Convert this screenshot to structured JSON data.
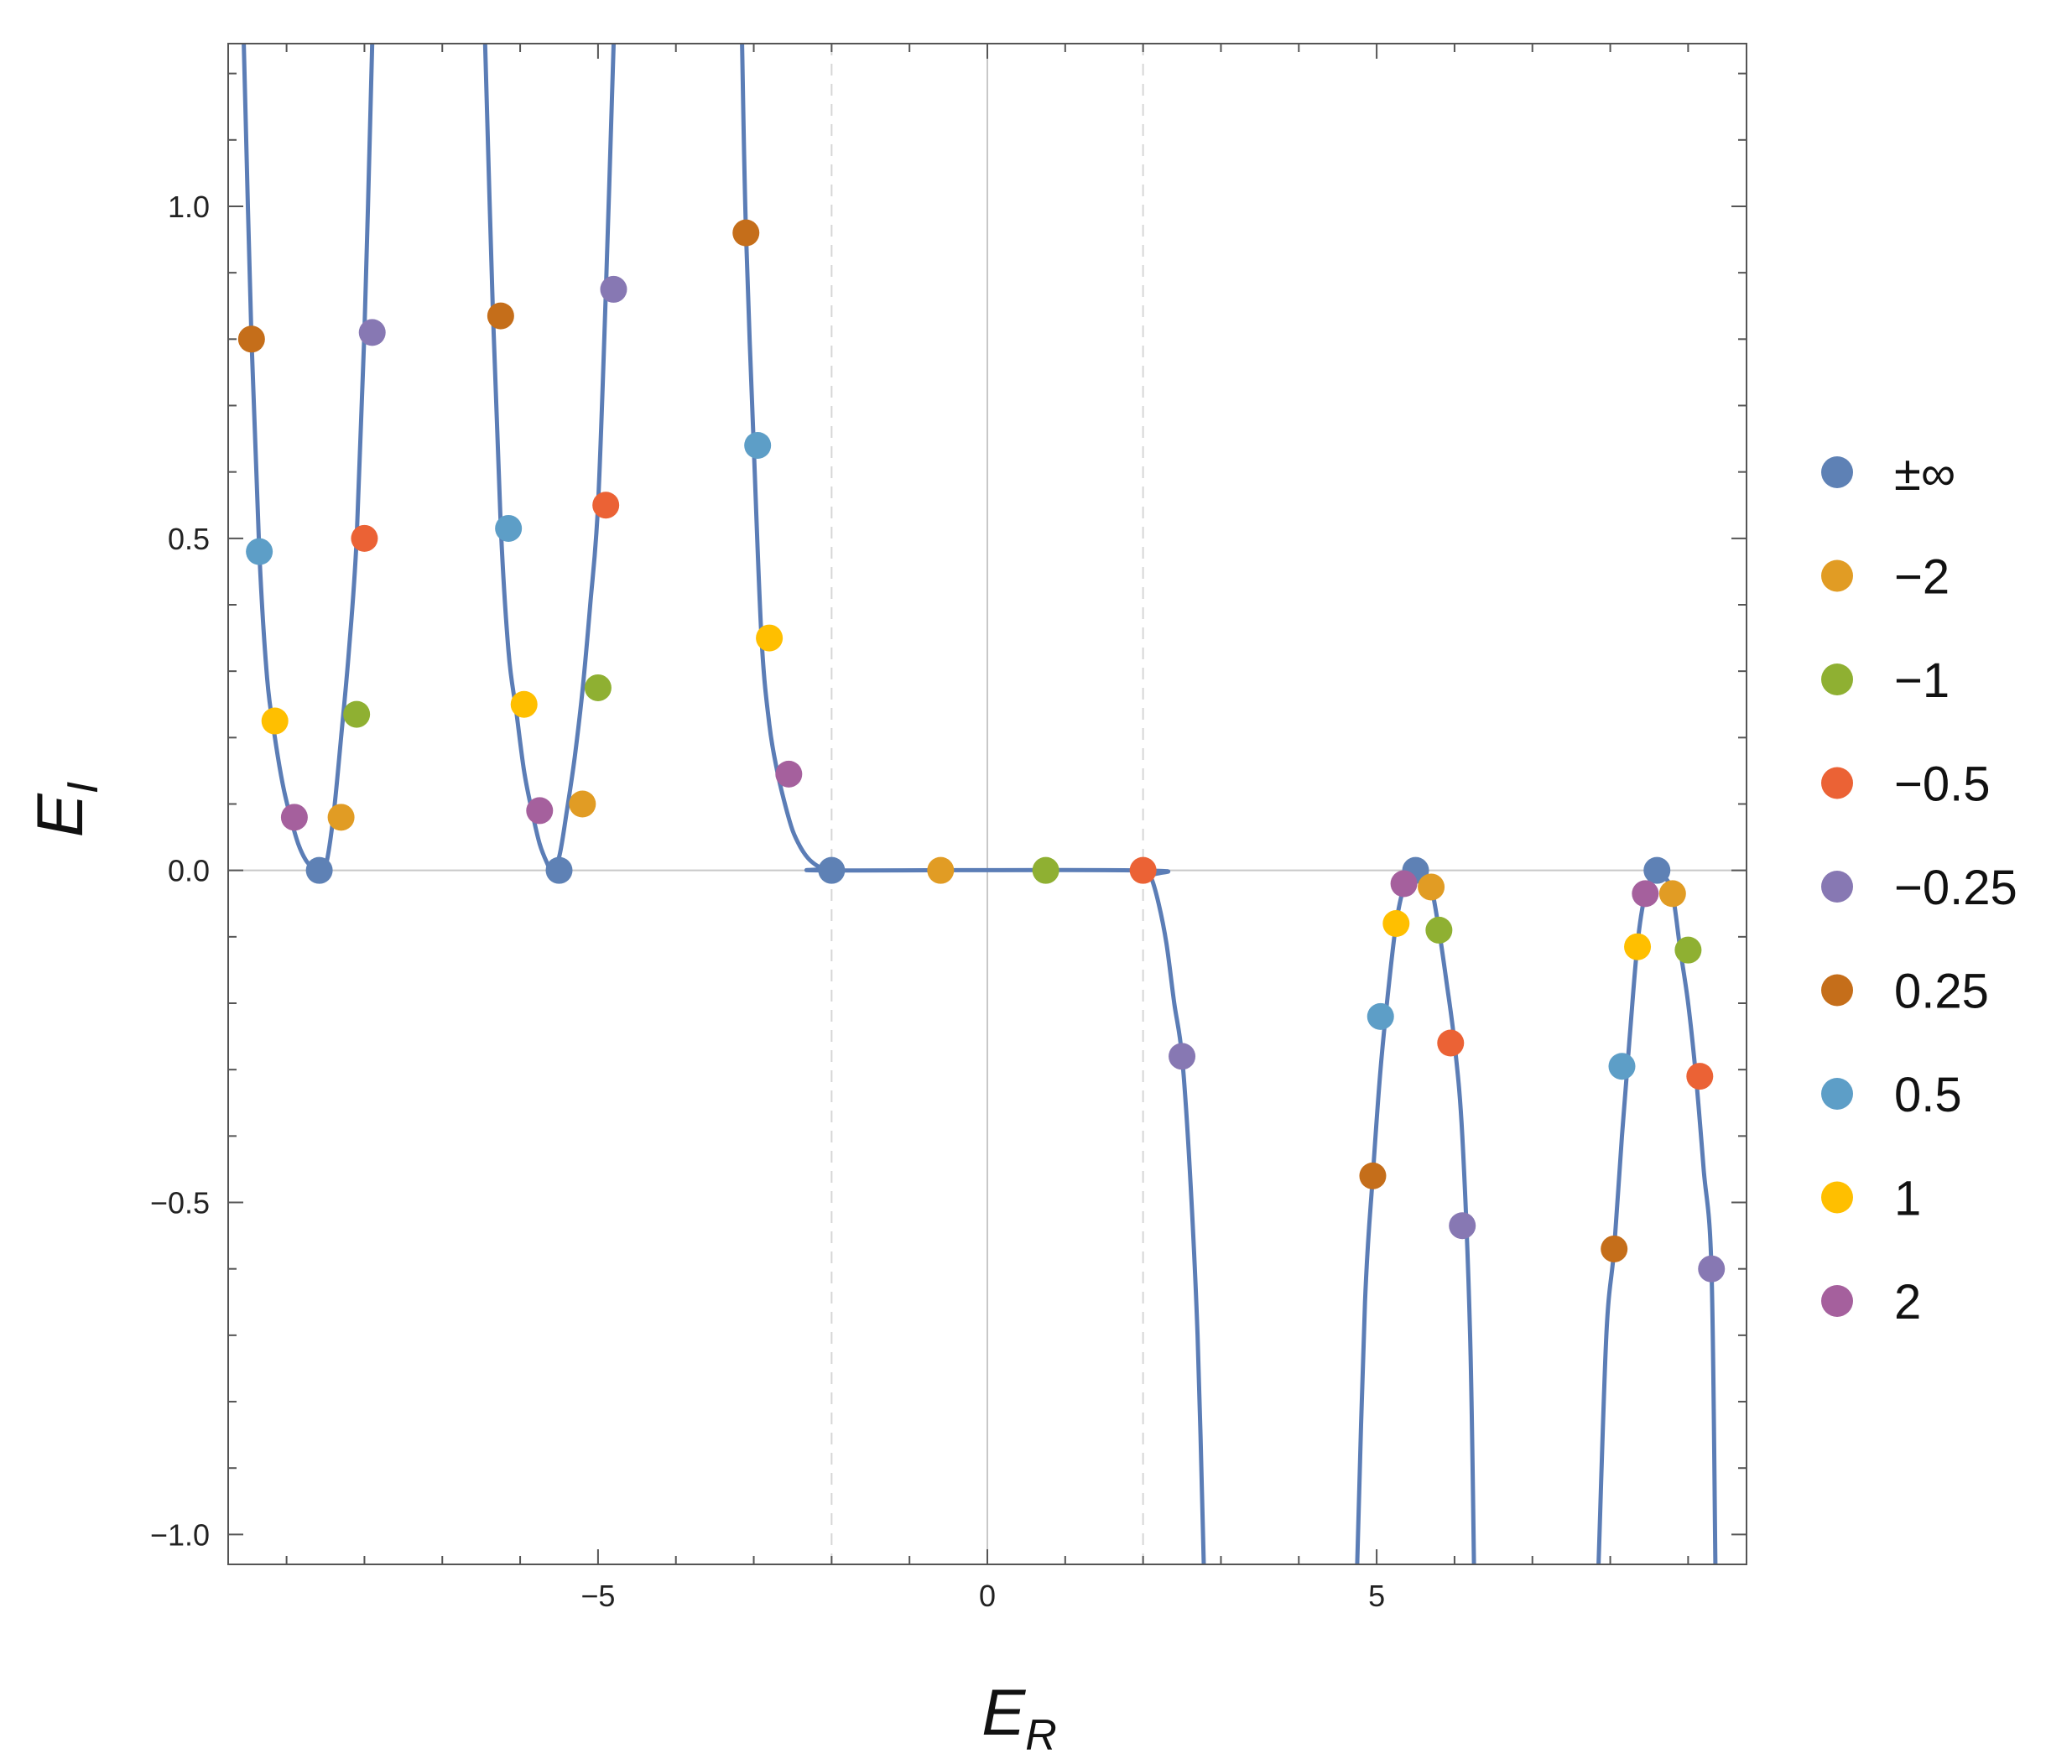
{
  "chart_data": {
    "type": "scatter",
    "title": "",
    "xlabel": "E",
    "xlabel_sub": "R",
    "ylabel": "E",
    "ylabel_sub": "I",
    "xlim": [
      -9.75,
      9.75
    ],
    "ylim": [
      -1.045,
      1.245
    ],
    "xticks": [
      {
        "v": -5,
        "label": "−5"
      },
      {
        "v": 0,
        "label": "0"
      },
      {
        "v": 5,
        "label": "5"
      }
    ],
    "yticks": [
      {
        "v": -1.0,
        "label": "−1.0"
      },
      {
        "v": -0.5,
        "label": "−0.5"
      },
      {
        "v": 0.0,
        "label": "0.0"
      },
      {
        "v": 0.5,
        "label": "0.5"
      },
      {
        "v": 1.0,
        "label": "1.0"
      }
    ],
    "reference_lines": {
      "horizontal": [
        0
      ],
      "vertical_solid": [
        0
      ],
      "vertical_dashed": [
        -2,
        2
      ]
    },
    "curve_color": "#5b7db6",
    "curve": {
      "band_below": {
        "center": -8.58,
        "cusp": -2.0
      },
      "branches": [
        {
          "x": [
            -9.55,
            -9.45,
            -9.35,
            -9.25,
            -9.15,
            -9.05,
            -8.95,
            -8.85,
            -8.75,
            -8.65,
            -8.58,
            -8.5,
            -8.4,
            -8.3,
            -8.2,
            -8.1,
            -8.0,
            -7.9
          ],
          "y": [
            1.245,
            0.8,
            0.48,
            0.29,
            0.2,
            0.13,
            0.08,
            0.04,
            0.015,
            0.003,
            0.0,
            0.005,
            0.08,
            0.2,
            0.33,
            0.5,
            0.81,
            1.245
          ]
        },
        {
          "x": [
            -6.45,
            -6.35,
            -6.25,
            -6.15,
            -6.05,
            -5.95,
            -5.85,
            -5.75,
            -5.65,
            -5.6,
            -5.5,
            -5.4,
            -5.3,
            -5.2,
            -5.1,
            -5.0,
            -4.9,
            -4.8
          ],
          "y": [
            1.245,
            0.84,
            0.52,
            0.33,
            0.24,
            0.15,
            0.09,
            0.04,
            0.01,
            0.0,
            0.02,
            0.09,
            0.17,
            0.27,
            0.4,
            0.55,
            0.87,
            1.245
          ]
        },
        {
          "x": [
            -3.15,
            -3.1,
            -3.0,
            -2.9,
            -2.8,
            -2.7,
            -2.6,
            -2.5,
            -2.4,
            -2.3,
            -2.2,
            -2.1,
            -2.0,
            2.0,
            2.1,
            2.2,
            2.3,
            2.4,
            2.5,
            2.6,
            2.7,
            2.78
          ],
          "y": [
            1.245,
            0.96,
            0.64,
            0.35,
            0.22,
            0.15,
            0.1,
            0.06,
            0.035,
            0.018,
            0.008,
            0.002,
            0.0,
            0.0,
            -0.01,
            -0.05,
            -0.11,
            -0.2,
            -0.28,
            -0.45,
            -0.7,
            -1.045
          ]
        },
        {
          "x": [
            4.75,
            4.85,
            4.95,
            5.05,
            5.15,
            5.25,
            5.35,
            5.45,
            5.5,
            5.6,
            5.7,
            5.8,
            5.9,
            6.0,
            6.1,
            6.2,
            6.25
          ],
          "y": [
            -1.045,
            -0.65,
            -0.46,
            -0.3,
            -0.18,
            -0.08,
            -0.025,
            -0.005,
            0.0,
            -0.01,
            -0.025,
            -0.09,
            -0.17,
            -0.26,
            -0.4,
            -0.7,
            -1.045
          ]
        },
        {
          "x": [
            7.85,
            7.95,
            8.05,
            8.15,
            8.25,
            8.35,
            8.45,
            8.55,
            8.6,
            8.7,
            8.8,
            8.9,
            9.0,
            9.1,
            9.2,
            9.3,
            9.35
          ],
          "y": [
            -1.045,
            -0.7,
            -0.57,
            -0.4,
            -0.25,
            -0.11,
            -0.035,
            -0.008,
            0.0,
            -0.01,
            -0.035,
            -0.12,
            -0.2,
            -0.31,
            -0.45,
            -0.6,
            -1.045
          ]
        }
      ]
    },
    "series": [
      {
        "name": "±∞",
        "color": "#5e81b5",
        "points": [
          [
            -8.58,
            0.0
          ],
          [
            -5.5,
            0.0
          ],
          [
            -2.0,
            0.0
          ],
          [
            5.5,
            0.0
          ],
          [
            8.6,
            0.0
          ]
        ]
      },
      {
        "name": "−2",
        "color": "#e19c24",
        "points": [
          [
            -8.3,
            0.08
          ],
          [
            -5.2,
            0.1
          ],
          [
            -0.6,
            0.0
          ],
          [
            5.7,
            -0.025
          ],
          [
            8.8,
            -0.035
          ]
        ]
      },
      {
        "name": "−1",
        "color": "#8fb032",
        "points": [
          [
            -8.1,
            0.235
          ],
          [
            -5.0,
            0.275
          ],
          [
            0.75,
            0.0
          ],
          [
            5.8,
            -0.09
          ],
          [
            9.0,
            -0.12
          ]
        ]
      },
      {
        "name": "−0.5",
        "color": "#eb6235",
        "points": [
          [
            -8.0,
            0.5
          ],
          [
            -4.9,
            0.55
          ],
          [
            2.0,
            0.0
          ],
          [
            5.95,
            -0.26
          ],
          [
            9.15,
            -0.31
          ]
        ]
      },
      {
        "name": "−0.25",
        "color": "#8778b3",
        "points": [
          [
            -7.9,
            0.81
          ],
          [
            -4.8,
            0.875
          ],
          [
            2.5,
            -0.28
          ],
          [
            6.1,
            -0.535
          ],
          [
            9.3,
            -0.6
          ]
        ]
      },
      {
        "name": "0.25",
        "color": "#c56e1a",
        "points": [
          [
            -9.45,
            0.8
          ],
          [
            -6.25,
            0.835
          ],
          [
            -3.1,
            0.96
          ],
          [
            4.95,
            -0.46
          ],
          [
            8.05,
            -0.57
          ]
        ]
      },
      {
        "name": "0.5",
        "color": "#5d9ec7",
        "points": [
          [
            -9.35,
            0.48
          ],
          [
            -6.15,
            0.515
          ],
          [
            -2.95,
            0.64
          ],
          [
            5.05,
            -0.22
          ],
          [
            8.15,
            -0.295
          ]
        ]
      },
      {
        "name": "1",
        "color": "#ffbf00",
        "points": [
          [
            -9.15,
            0.225
          ],
          [
            -5.95,
            0.25
          ],
          [
            -2.8,
            0.35
          ],
          [
            5.25,
            -0.08
          ],
          [
            8.35,
            -0.115
          ]
        ]
      },
      {
        "name": "2",
        "color": "#a5609d",
        "points": [
          [
            -8.9,
            0.08
          ],
          [
            -5.75,
            0.09
          ],
          [
            -2.55,
            0.145
          ],
          [
            5.35,
            -0.02
          ],
          [
            8.45,
            -0.035
          ]
        ]
      }
    ],
    "legend": {
      "placement": "right"
    }
  }
}
